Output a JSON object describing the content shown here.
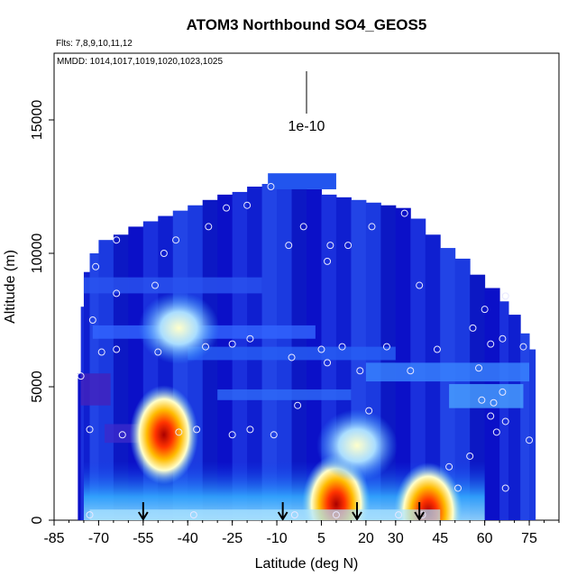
{
  "chart_data": {
    "type": "heatmap",
    "title": "ATOM3 Northbound SO4_GEOS5",
    "flights_note": "Flts: 7,8,9,10,11,12",
    "dates_note": "MMDD: 1014,1017,1019,1020,1023,1025",
    "xlabel": "Latitude (deg N)",
    "ylabel": "Altitude (m)",
    "xlim": [
      -85,
      85
    ],
    "ylim": [
      0,
      17500
    ],
    "xticks": [
      -85,
      -70,
      -55,
      -40,
      -25,
      -10,
      5,
      20,
      30,
      45,
      60,
      75
    ],
    "yticks": [
      0,
      5000,
      10000,
      15000
    ],
    "scale_label": "1e-10",
    "arrows_lat": [
      -55,
      -8,
      17,
      38
    ],
    "grid": false,
    "hotspots": [
      {
        "lat": -48,
        "alt": 3200,
        "level": "high"
      },
      {
        "lat": 10,
        "alt": 600,
        "level": "high"
      },
      {
        "lat": 41,
        "alt": 300,
        "level": "high"
      },
      {
        "lat": -43,
        "alt": 7200,
        "level": "medium"
      },
      {
        "lat": 17,
        "alt": 2800,
        "level": "medium"
      }
    ],
    "sample_points": [
      [
        -73,
        200
      ],
      [
        -76,
        5400
      ],
      [
        -73,
        3400
      ],
      [
        -72,
        7500
      ],
      [
        -71,
        9500
      ],
      [
        -69,
        6300
      ],
      [
        -64,
        10500
      ],
      [
        -64,
        8500
      ],
      [
        -64,
        6400
      ],
      [
        -62,
        3200
      ],
      [
        -51,
        8800
      ],
      [
        -48,
        10000
      ],
      [
        -50,
        6300
      ],
      [
        -44,
        10500
      ],
      [
        -43,
        3300
      ],
      [
        -38,
        200
      ],
      [
        -37,
        3400
      ],
      [
        -33,
        11000
      ],
      [
        -34,
        6500
      ],
      [
        -27,
        11700
      ],
      [
        -25,
        6600
      ],
      [
        -25,
        3200
      ],
      [
        -20,
        11800
      ],
      [
        -19,
        6800
      ],
      [
        -19,
        3400
      ],
      [
        -12,
        12500
      ],
      [
        -11,
        3200
      ],
      [
        -6,
        10300
      ],
      [
        -5,
        6100
      ],
      [
        -3,
        4300
      ],
      [
        -4,
        200
      ],
      [
        -1,
        11000
      ],
      [
        5,
        6400
      ],
      [
        7,
        5900
      ],
      [
        7,
        9700
      ],
      [
        8,
        10300
      ],
      [
        10,
        200
      ],
      [
        12,
        6500
      ],
      [
        14,
        10300
      ],
      [
        18,
        5600
      ],
      [
        21,
        4100
      ],
      [
        22,
        11000
      ],
      [
        27,
        6500
      ],
      [
        31,
        200
      ],
      [
        33,
        11500
      ],
      [
        35,
        5600
      ],
      [
        38,
        8800
      ],
      [
        39,
        200
      ],
      [
        44,
        6400
      ],
      [
        48,
        2000
      ],
      [
        51,
        1200
      ],
      [
        55,
        2400
      ],
      [
        56,
        7200
      ],
      [
        58,
        5700
      ],
      [
        59,
        4500
      ],
      [
        60,
        7900
      ],
      [
        62,
        3900
      ],
      [
        62,
        6600
      ],
      [
        63,
        4400
      ],
      [
        64,
        3300
      ],
      [
        66,
        4800
      ],
      [
        66,
        6800
      ],
      [
        67,
        3700
      ],
      [
        67,
        8400
      ],
      [
        67,
        1200
      ],
      [
        73,
        6500
      ],
      [
        75,
        3000
      ]
    ]
  }
}
